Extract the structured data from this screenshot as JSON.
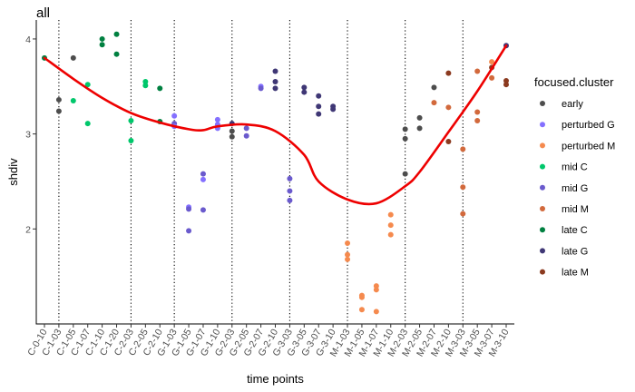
{
  "chart_data": {
    "type": "scatter",
    "title": "all",
    "xlabel": "time points",
    "ylabel": "shdiv",
    "ylim": [
      1.0,
      4.2
    ],
    "yticks": [
      2,
      3,
      4
    ],
    "categories": [
      "C-0-10",
      "C-1-03",
      "C-1-05",
      "C-1-07",
      "C-1-10",
      "C-1-20",
      "C-2-03",
      "C-2-05",
      "C-2-10",
      "G-1-03",
      "G-1-05",
      "G-1-07",
      "G-1-10",
      "G-2-03",
      "G-2-05",
      "G-2-07",
      "G-2-10",
      "G-3-03",
      "G-3-05",
      "G-3-07",
      "G-3-10",
      "M-1-03",
      "M-1-05",
      "M-1-07",
      "M-1-10",
      "M-2-03",
      "M-2-05",
      "M-2-07",
      "M-2-10",
      "M-3-03",
      "M-3-05",
      "M-3-07",
      "M-3-10"
    ],
    "vlines_at": [
      "C-1-03",
      "C-2-03",
      "G-1-03",
      "G-2-03",
      "G-3-03",
      "M-1-03",
      "M-2-03",
      "M-3-03"
    ],
    "legend": {
      "title": "focused.cluster",
      "position": "right",
      "entries": [
        {
          "name": "early",
          "color": "#4d4d4d"
        },
        {
          "name": "perturbed G",
          "color": "#8470ff"
        },
        {
          "name": "perturbed M",
          "color": "#f58a4e"
        },
        {
          "name": "mid C",
          "color": "#00c76b"
        },
        {
          "name": "mid G",
          "color": "#6a5acd"
        },
        {
          "name": "mid M",
          "color": "#d2693c"
        },
        {
          "name": "late C",
          "color": "#008040"
        },
        {
          "name": "late G",
          "color": "#3f3775"
        },
        {
          "name": "late M",
          "color": "#8b3a1f"
        }
      ]
    },
    "points": [
      {
        "x": "C-0-10",
        "y": 3.8,
        "g": "late C"
      },
      {
        "x": "C-1-03",
        "y": 3.36,
        "g": "early"
      },
      {
        "x": "C-1-03",
        "y": 3.24,
        "g": "early"
      },
      {
        "x": "C-1-05",
        "y": 3.8,
        "g": "early"
      },
      {
        "x": "C-1-05",
        "y": 3.35,
        "g": "mid C"
      },
      {
        "x": "C-1-07",
        "y": 3.52,
        "g": "mid C"
      },
      {
        "x": "C-1-07",
        "y": 3.11,
        "g": "mid C"
      },
      {
        "x": "C-1-10",
        "y": 4.0,
        "g": "late C"
      },
      {
        "x": "C-1-10",
        "y": 3.94,
        "g": "late C"
      },
      {
        "x": "C-1-20",
        "y": 4.05,
        "g": "late C"
      },
      {
        "x": "C-1-20",
        "y": 3.84,
        "g": "late C"
      },
      {
        "x": "C-2-03",
        "y": 3.14,
        "g": "mid C"
      },
      {
        "x": "C-2-03",
        "y": 2.93,
        "g": "mid C"
      },
      {
        "x": "C-2-05",
        "y": 3.55,
        "g": "mid C"
      },
      {
        "x": "C-2-05",
        "y": 3.51,
        "g": "mid C"
      },
      {
        "x": "C-2-10",
        "y": 3.48,
        "g": "late C"
      },
      {
        "x": "C-2-10",
        "y": 3.13,
        "g": "late C"
      },
      {
        "x": "G-1-03",
        "y": 3.19,
        "g": "perturbed G"
      },
      {
        "x": "G-1-03",
        "y": 3.11,
        "g": "mid G"
      },
      {
        "x": "G-1-03",
        "y": 3.08,
        "g": "perturbed G"
      },
      {
        "x": "G-1-05",
        "y": 2.23,
        "g": "perturbed G"
      },
      {
        "x": "G-1-05",
        "y": 2.21,
        "g": "mid G"
      },
      {
        "x": "G-1-05",
        "y": 1.98,
        "g": "mid G"
      },
      {
        "x": "G-1-07",
        "y": 2.58,
        "g": "mid G"
      },
      {
        "x": "G-1-07",
        "y": 2.52,
        "g": "perturbed G"
      },
      {
        "x": "G-1-07",
        "y": 2.2,
        "g": "mid G"
      },
      {
        "x": "G-1-10",
        "y": 3.15,
        "g": "perturbed G"
      },
      {
        "x": "G-1-10",
        "y": 3.1,
        "g": "perturbed G"
      },
      {
        "x": "G-1-10",
        "y": 3.06,
        "g": "perturbed G"
      },
      {
        "x": "G-2-03",
        "y": 3.11,
        "g": "late G"
      },
      {
        "x": "G-2-03",
        "y": 3.03,
        "g": "early"
      },
      {
        "x": "G-2-03",
        "y": 2.97,
        "g": "early"
      },
      {
        "x": "G-2-05",
        "y": 3.06,
        "g": "mid G"
      },
      {
        "x": "G-2-05",
        "y": 2.98,
        "g": "mid G"
      },
      {
        "x": "G-2-07",
        "y": 3.5,
        "g": "perturbed G"
      },
      {
        "x": "G-2-07",
        "y": 3.48,
        "g": "mid G"
      },
      {
        "x": "G-2-10",
        "y": 3.66,
        "g": "late G"
      },
      {
        "x": "G-2-10",
        "y": 3.55,
        "g": "late G"
      },
      {
        "x": "G-2-10",
        "y": 3.48,
        "g": "late G"
      },
      {
        "x": "G-3-03",
        "y": 2.53,
        "g": "mid G"
      },
      {
        "x": "G-3-03",
        "y": 2.4,
        "g": "mid G"
      },
      {
        "x": "G-3-03",
        "y": 2.3,
        "g": "mid G"
      },
      {
        "x": "G-3-05",
        "y": 3.49,
        "g": "late G"
      },
      {
        "x": "G-3-05",
        "y": 3.44,
        "g": "late G"
      },
      {
        "x": "G-3-07",
        "y": 3.4,
        "g": "late G"
      },
      {
        "x": "G-3-07",
        "y": 3.29,
        "g": "late G"
      },
      {
        "x": "G-3-07",
        "y": 3.21,
        "g": "late G"
      },
      {
        "x": "G-3-10",
        "y": 3.29,
        "g": "late G"
      },
      {
        "x": "G-3-10",
        "y": 3.26,
        "g": "late G"
      },
      {
        "x": "M-1-03",
        "y": 1.85,
        "g": "perturbed M"
      },
      {
        "x": "M-1-03",
        "y": 1.73,
        "g": "perturbed M"
      },
      {
        "x": "M-1-03",
        "y": 1.68,
        "g": "perturbed M"
      },
      {
        "x": "M-1-05",
        "y": 1.3,
        "g": "perturbed M"
      },
      {
        "x": "M-1-05",
        "y": 1.28,
        "g": "perturbed M"
      },
      {
        "x": "M-1-05",
        "y": 1.15,
        "g": "perturbed M"
      },
      {
        "x": "M-1-07",
        "y": 1.4,
        "g": "perturbed M"
      },
      {
        "x": "M-1-07",
        "y": 1.36,
        "g": "perturbed M"
      },
      {
        "x": "M-1-07",
        "y": 1.13,
        "g": "perturbed M"
      },
      {
        "x": "M-1-10",
        "y": 2.15,
        "g": "perturbed M"
      },
      {
        "x": "M-1-10",
        "y": 2.04,
        "g": "perturbed M"
      },
      {
        "x": "M-1-10",
        "y": 1.94,
        "g": "perturbed M"
      },
      {
        "x": "M-2-03",
        "y": 3.05,
        "g": "early"
      },
      {
        "x": "M-2-03",
        "y": 2.95,
        "g": "early"
      },
      {
        "x": "M-2-03",
        "y": 2.58,
        "g": "early"
      },
      {
        "x": "M-2-05",
        "y": 3.17,
        "g": "early"
      },
      {
        "x": "M-2-05",
        "y": 3.06,
        "g": "early"
      },
      {
        "x": "M-2-07",
        "y": 3.49,
        "g": "early"
      },
      {
        "x": "M-2-07",
        "y": 3.33,
        "g": "mid M"
      },
      {
        "x": "M-2-10",
        "y": 3.64,
        "g": "late M"
      },
      {
        "x": "M-2-10",
        "y": 3.28,
        "g": "mid M"
      },
      {
        "x": "M-2-10",
        "y": 2.92,
        "g": "late M"
      },
      {
        "x": "M-3-03",
        "y": 2.84,
        "g": "mid M"
      },
      {
        "x": "M-3-03",
        "y": 2.44,
        "g": "mid M"
      },
      {
        "x": "M-3-03",
        "y": 2.16,
        "g": "mid M"
      },
      {
        "x": "M-3-05",
        "y": 3.66,
        "g": "mid M"
      },
      {
        "x": "M-3-05",
        "y": 3.23,
        "g": "mid M"
      },
      {
        "x": "M-3-05",
        "y": 3.14,
        "g": "mid M"
      },
      {
        "x": "M-3-07",
        "y": 3.76,
        "g": "perturbed M"
      },
      {
        "x": "M-3-07",
        "y": 3.7,
        "g": "late M"
      },
      {
        "x": "M-3-07",
        "y": 3.59,
        "g": "mid M"
      },
      {
        "x": "M-3-10",
        "y": 3.93,
        "g": "late G"
      },
      {
        "x": "M-3-10",
        "y": 3.56,
        "g": "late M"
      },
      {
        "x": "M-3-10",
        "y": 3.52,
        "g": "late M"
      }
    ],
    "trend": {
      "color": "#ee0000",
      "x": [
        "C-0-10",
        "C-1-05",
        "C-1-10",
        "C-2-03",
        "C-2-10",
        "G-1-05",
        "G-1-07",
        "G-1-10",
        "G-2-05",
        "G-2-10",
        "G-3-05",
        "G-3-07",
        "M-1-03",
        "M-1-07",
        "M-2-03",
        "M-2-05",
        "M-2-10",
        "M-3-05",
        "M-3-10"
      ],
      "y": [
        3.8,
        3.58,
        3.38,
        3.22,
        3.12,
        3.05,
        3.04,
        3.08,
        3.1,
        3.03,
        2.78,
        2.5,
        2.31,
        2.27,
        2.45,
        2.6,
        3.02,
        3.45,
        3.93
      ]
    }
  }
}
